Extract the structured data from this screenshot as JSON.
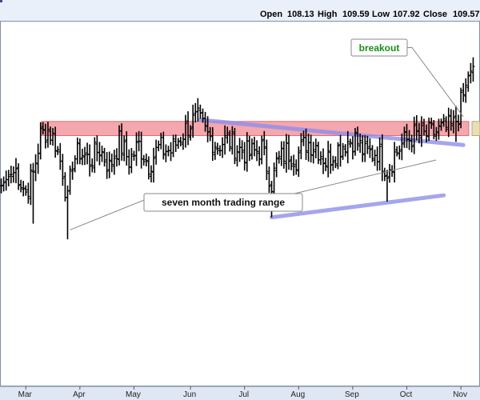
{
  "header": {
    "open_label": "Open",
    "open_value": "108.13",
    "high_label": "High",
    "high_value": "109.59",
    "low_label": "Low",
    "low_value": "107.92",
    "close_label": "Close",
    "close_value": "109.57"
  },
  "colors": {
    "background": "#ffffff",
    "plot_border": "#7f8fa8",
    "header_band": "#eaf0fa",
    "axis_band": "#dfe7f4",
    "bar": "#000000",
    "resistance_fill": "#f4a7ad",
    "resistance_stroke": "#e06b76",
    "trendline": "#8f8fea",
    "breakout_box": "#e8dfb8",
    "breakout_text": "#1a8c1a",
    "callout_border": "#888888",
    "callout_bg": "#ffffff"
  },
  "chart_data": {
    "type": "ohlc",
    "ylim": [
      99.5,
      111.0
    ],
    "x_count": 193,
    "x_ticks": [
      {
        "label": "Mar",
        "index": 10
      },
      {
        "label": "Apr",
        "index": 32
      },
      {
        "label": "May",
        "index": 54
      },
      {
        "label": "Jun",
        "index": 77
      },
      {
        "label": "Jul",
        "index": 99
      },
      {
        "label": "Aug",
        "index": 121
      },
      {
        "label": "Sep",
        "index": 143
      },
      {
        "label": "Oct",
        "index": 165
      },
      {
        "label": "Nov",
        "index": 187
      }
    ],
    "anchors": [
      [
        0,
        105.8
      ],
      [
        3,
        106.1
      ],
      [
        6,
        106.3
      ],
      [
        10,
        105.6
      ],
      [
        13,
        106.2
      ],
      [
        16,
        107.4
      ],
      [
        19,
        107.6
      ],
      [
        22,
        107.2
      ],
      [
        25,
        106.3
      ],
      [
        27,
        105.3
      ],
      [
        29,
        106.6
      ],
      [
        32,
        106.9
      ],
      [
        36,
        106.6
      ],
      [
        40,
        107.0
      ],
      [
        44,
        106.4
      ],
      [
        48,
        107.2
      ],
      [
        52,
        106.6
      ],
      [
        56,
        107.1
      ],
      [
        60,
        106.5
      ],
      [
        64,
        107.0
      ],
      [
        69,
        106.9
      ],
      [
        74,
        107.5
      ],
      [
        77,
        107.8
      ],
      [
        80,
        107.9
      ],
      [
        84,
        107.4
      ],
      [
        88,
        107.1
      ],
      [
        92,
        107.3
      ],
      [
        96,
        107.0
      ],
      [
        101,
        106.8
      ],
      [
        106,
        107.0
      ],
      [
        110,
        105.9
      ],
      [
        112,
        106.5
      ],
      [
        116,
        106.9
      ],
      [
        120,
        106.7
      ],
      [
        124,
        107.2
      ],
      [
        128,
        107.1
      ],
      [
        132,
        106.6
      ],
      [
        136,
        106.9
      ],
      [
        140,
        107.2
      ],
      [
        144,
        107.3
      ],
      [
        148,
        106.8
      ],
      [
        153,
        106.9
      ],
      [
        157,
        106.3
      ],
      [
        160,
        106.8
      ],
      [
        164,
        107.2
      ],
      [
        168,
        107.4
      ],
      [
        172,
        107.4
      ],
      [
        176,
        107.5
      ],
      [
        180,
        107.6
      ],
      [
        184,
        107.7
      ],
      [
        186,
        108.1
      ],
      [
        188,
        108.7
      ],
      [
        190,
        109.3
      ],
      [
        192,
        109.6
      ]
    ],
    "wiggle_amplitude": 0.4,
    "bar_range_mean": 0.45,
    "spikes": [
      {
        "index": 13,
        "low": 104.6
      },
      {
        "index": 27,
        "low": 104.1
      },
      {
        "index": 110,
        "low": 104.8
      },
      {
        "index": 157,
        "low": 105.3
      },
      {
        "index": 185,
        "low": 107.2
      }
    ],
    "resistance_zone": {
      "low": 107.4,
      "high": 107.85
    },
    "trendline_upper": {
      "from": {
        "index": 81,
        "value": 107.9
      },
      "to": {
        "index": 188,
        "value": 107.1
      }
    },
    "trendline_lower": {
      "from": {
        "index": 110,
        "value": 104.8
      },
      "to": {
        "index": 180,
        "value": 105.5
      }
    },
    "annotations": [
      {
        "name": "breakout",
        "text": "breakout",
        "target_index": 188,
        "target_value": 108.0
      },
      {
        "name": "range",
        "text": "seven month trading range",
        "target_index": 28,
        "target_value": 104.3
      }
    ]
  }
}
